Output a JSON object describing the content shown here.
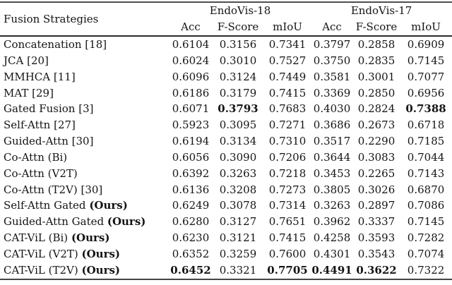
{
  "table": {
    "row_header": "Fusion Strategies",
    "groups": [
      {
        "label": "EndoVis-18",
        "columns": [
          "Acc",
          "F-Score",
          "mIoU"
        ]
      },
      {
        "label": "EndoVis-17",
        "columns": [
          "Acc",
          "F-Score",
          "mIoU"
        ]
      }
    ],
    "rows": [
      {
        "name": "Concatenation [18]",
        "suffix": "",
        "values": [
          "0.6104",
          "0.3156",
          "0.7341",
          "0.3797",
          "0.2858",
          "0.6909"
        ],
        "bold": [
          0,
          0,
          0,
          0,
          0,
          0
        ]
      },
      {
        "name": "JCA [20]",
        "suffix": "",
        "values": [
          "0.6024",
          "0.3010",
          "0.7527",
          "0.3750",
          "0.2835",
          "0.7145"
        ],
        "bold": [
          0,
          0,
          0,
          0,
          0,
          0
        ]
      },
      {
        "name": "MMHCA [11]",
        "suffix": "",
        "values": [
          "0.6096",
          "0.3124",
          "0.7449",
          "0.3581",
          "0.3001",
          "0.7077"
        ],
        "bold": [
          0,
          0,
          0,
          0,
          0,
          0
        ]
      },
      {
        "name": "MAT [29]",
        "suffix": "",
        "values": [
          "0.6186",
          "0.3179",
          "0.7415",
          "0.3369",
          "0.2850",
          "0.6956"
        ],
        "bold": [
          0,
          0,
          0,
          0,
          0,
          0
        ]
      },
      {
        "name": "Gated Fusion [3]",
        "suffix": "",
        "values": [
          "0.6071",
          "0.3793",
          "0.7683",
          "0.4030",
          "0.2824",
          "0.7388"
        ],
        "bold": [
          0,
          1,
          0,
          0,
          0,
          1
        ]
      },
      {
        "name": "Self-Attn [27]",
        "suffix": "",
        "values": [
          "0.5923",
          "0.3095",
          "0.7271",
          "0.3686",
          "0.2673",
          "0.6718"
        ],
        "bold": [
          0,
          0,
          0,
          0,
          0,
          0
        ]
      },
      {
        "name": "Guided-Attn [30]",
        "suffix": "",
        "values": [
          "0.6194",
          "0.3134",
          "0.7310",
          "0.3517",
          "0.2290",
          "0.7185"
        ],
        "bold": [
          0,
          0,
          0,
          0,
          0,
          0
        ]
      },
      {
        "name": "Co-Attn (Bi)",
        "suffix": "",
        "values": [
          "0.6056",
          "0.3090",
          "0.7206",
          "0.3644",
          "0.3083",
          "0.7044"
        ],
        "bold": [
          0,
          0,
          0,
          0,
          0,
          0
        ]
      },
      {
        "name": "Co-Attn (V2T)",
        "suffix": "",
        "values": [
          "0.6392",
          "0.3263",
          "0.7218",
          "0.3453",
          "0.2265",
          "0.7143"
        ],
        "bold": [
          0,
          0,
          0,
          0,
          0,
          0
        ]
      },
      {
        "name": "Co-Attn (T2V) [30]",
        "suffix": "",
        "values": [
          "0.6136",
          "0.3208",
          "0.7273",
          "0.3805",
          "0.3026",
          "0.6870"
        ],
        "bold": [
          0,
          0,
          0,
          0,
          0,
          0
        ]
      },
      {
        "name": "Self-Attn Gated",
        "suffix": "(Ours)",
        "values": [
          "0.6249",
          "0.3078",
          "0.7314",
          "0.3263",
          "0.2897",
          "0.7086"
        ],
        "bold": [
          0,
          0,
          0,
          0,
          0,
          0
        ]
      },
      {
        "name": "Guided-Attn Gated",
        "suffix": "(Ours)",
        "values": [
          "0.6280",
          "0.3127",
          "0.7651",
          "0.3962",
          "0.3337",
          "0.7145"
        ],
        "bold": [
          0,
          0,
          0,
          0,
          0,
          0
        ]
      },
      {
        "name": "CAT-ViL (Bi)",
        "suffix": "(Ours)",
        "values": [
          "0.6230",
          "0.3121",
          "0.7415",
          "0.4258",
          "0.3593",
          "0.7282"
        ],
        "bold": [
          0,
          0,
          0,
          0,
          0,
          0
        ]
      },
      {
        "name": "CAT-ViL (V2T)",
        "suffix": "(Ours)",
        "values": [
          "0.6352",
          "0.3259",
          "0.7600",
          "0.4301",
          "0.3543",
          "0.7074"
        ],
        "bold": [
          0,
          0,
          0,
          0,
          0,
          0
        ]
      },
      {
        "name": "CAT-ViL (T2V)",
        "suffix": "(Ours)",
        "values": [
          "0.6452",
          "0.3321",
          "0.7705",
          "0.4491",
          "0.3622",
          "0.7322"
        ],
        "bold": [
          1,
          0,
          1,
          1,
          1,
          0
        ]
      }
    ],
    "colors": {
      "text": "#141414",
      "rule_heavy": "#4f4f4f",
      "rule_mid": "#2a2a2a",
      "background": "#ffffff"
    }
  }
}
